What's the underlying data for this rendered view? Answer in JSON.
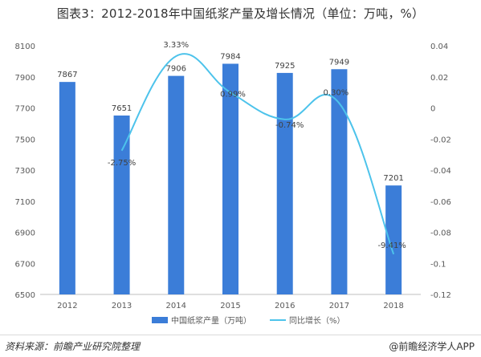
{
  "title": "图表3：2012-2018年中国纸浆产量及增长情况（单位：万吨，%）",
  "source": "资料来源：前瞻产业研究院整理",
  "brand": "@前瞻经济学人APP",
  "colors": {
    "bar": "#3b7dd8",
    "line": "#4dc3eb",
    "axis": "#bfbfbf",
    "text": "#595959",
    "title": "#333333"
  },
  "chart_data": {
    "type": "bar",
    "categories": [
      "2012",
      "2013",
      "2014",
      "2015",
      "2016",
      "2017",
      "2018"
    ],
    "series": [
      {
        "name": "中国纸浆产量（万吨）",
        "type": "bar",
        "axis": "left",
        "values": [
          7867,
          7651,
          7906,
          7984,
          7925,
          7949,
          7201
        ],
        "labels": [
          "7867",
          "7651",
          "7906",
          "7984",
          "7925",
          "7949",
          "7201"
        ]
      },
      {
        "name": "同比增长（%）",
        "type": "line",
        "smooth": true,
        "axis": "right",
        "values": [
          null,
          -0.0275,
          0.0333,
          0.0099,
          -0.0074,
          0.003,
          -0.0941
        ],
        "labels": [
          null,
          "-2.75%",
          "3.33%",
          "0.99%",
          "-0.74%",
          "0.30%",
          "-9.41%"
        ]
      }
    ],
    "y_left": {
      "ylim": [
        6500,
        8100
      ],
      "ticks": [
        "6500",
        "6700",
        "6900",
        "7100",
        "7300",
        "7500",
        "7700",
        "7900",
        "8100"
      ]
    },
    "y_right": {
      "ylim": [
        -0.12,
        0.04
      ],
      "ticks": [
        "0.04",
        "0.02",
        "0",
        "-0.02",
        "-0.04",
        "-0.06",
        "-0.08",
        "-0.1",
        "-0.12"
      ]
    },
    "grid": false,
    "legend": "bottom"
  }
}
